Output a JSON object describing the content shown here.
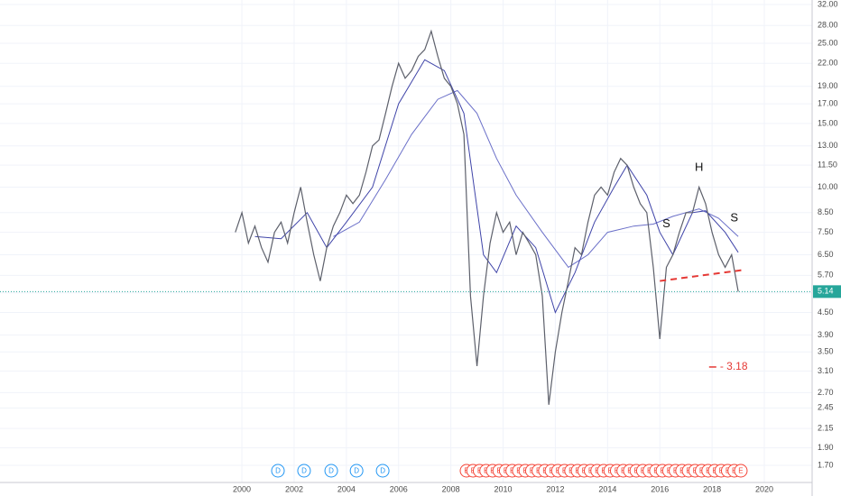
{
  "chart_data": {
    "type": "line",
    "log_scale": true,
    "grid": true,
    "xlim": [
      1990.74,
      2021.83
    ],
    "xticks": [
      2000,
      2002,
      2004,
      2006,
      2008,
      2010,
      2012,
      2014,
      2016,
      2018,
      2020
    ],
    "ylim": [
      1.524,
      32.93
    ],
    "yticks": [
      {
        "value": 1.7,
        "label": "1.70"
      },
      {
        "value": 1.9,
        "label": "1.90"
      },
      {
        "value": 2.15,
        "label": "2.15"
      },
      {
        "value": 2.45,
        "label": "2.45"
      },
      {
        "value": 2.7,
        "label": "2.70"
      },
      {
        "value": 3.1,
        "label": "3.10"
      },
      {
        "value": 3.5,
        "label": "3.50"
      },
      {
        "value": 3.9,
        "label": "3.90"
      },
      {
        "value": 4.5,
        "label": "4.50"
      },
      {
        "value": 5.1,
        "label": "5.10"
      },
      {
        "value": 5.7,
        "label": "5.70"
      },
      {
        "value": 6.5,
        "label": "6.50"
      },
      {
        "value": 7.5,
        "label": "7.50"
      },
      {
        "value": 8.5,
        "label": "8.50"
      },
      {
        "value": 10,
        "label": "10.00"
      },
      {
        "value": 11.5,
        "label": "11.50"
      },
      {
        "value": 13,
        "label": "13.00"
      },
      {
        "value": 15,
        "label": "15.00"
      },
      {
        "value": 17,
        "label": "17.00"
      },
      {
        "value": 19,
        "label": "19.00"
      },
      {
        "value": 22,
        "label": "22.00"
      },
      {
        "value": 25,
        "label": "25.00"
      },
      {
        "value": 28,
        "label": "28.00"
      },
      {
        "value": 32,
        "label": "32.00"
      }
    ],
    "price": {
      "color": "#5d606b",
      "x": [
        1999.75,
        2000,
        2000.25,
        2000.5,
        2000.75,
        2001,
        2001.25,
        2001.5,
        2001.75,
        2002,
        2002.25,
        2002.5,
        2002.75,
        2003,
        2003.25,
        2003.5,
        2003.75,
        2004,
        2004.25,
        2004.5,
        2004.75,
        2005,
        2005.25,
        2005.5,
        2005.75,
        2006,
        2006.25,
        2006.5,
        2006.75,
        2007,
        2007.25,
        2007.5,
        2007.75,
        2008,
        2008.25,
        2008.5,
        2008.75,
        2009,
        2009.25,
        2009.5,
        2009.75,
        2010,
        2010.25,
        2010.5,
        2010.75,
        2011,
        2011.25,
        2011.5,
        2011.75,
        2012,
        2012.25,
        2012.5,
        2012.75,
        2013,
        2013.25,
        2013.5,
        2013.75,
        2014,
        2014.25,
        2014.5,
        2014.75,
        2015,
        2015.25,
        2015.5,
        2015.75,
        2016,
        2016.25,
        2016.5,
        2016.75,
        2017,
        2017.25,
        2017.5,
        2017.75,
        2018,
        2018.25,
        2018.5,
        2018.75,
        2019
      ],
      "values": [
        7.5,
        8.5,
        7.0,
        7.8,
        6.8,
        6.2,
        7.5,
        8.0,
        7.0,
        8.5,
        10.0,
        8.0,
        6.5,
        5.5,
        6.8,
        7.8,
        8.5,
        9.5,
        9.0,
        9.5,
        11.0,
        13.0,
        13.5,
        16.0,
        19.0,
        22.0,
        20.0,
        21.0,
        23.0,
        24.0,
        27.0,
        23.0,
        20.0,
        19.0,
        17.0,
        14.0,
        5.0,
        3.2,
        5.0,
        7.0,
        8.5,
        7.5,
        8.0,
        6.5,
        7.5,
        7.0,
        6.5,
        5.0,
        2.5,
        3.5,
        4.5,
        5.5,
        6.8,
        6.5,
        8.0,
        9.5,
        10.0,
        9.5,
        11.0,
        12.0,
        11.5,
        10.0,
        9.0,
        8.5,
        6.0,
        3.8,
        6.0,
        6.5,
        7.5,
        8.5,
        8.5,
        10.0,
        9.0,
        7.5,
        6.5,
        6.0,
        6.5,
        5.14
      ]
    },
    "ma_fast": {
      "color": "#3f44a8",
      "x": [
        2000.5,
        2001.5,
        2002.5,
        2003.25,
        2004,
        2005,
        2006,
        2007,
        2007.75,
        2008.5,
        2009.25,
        2009.75,
        2010.5,
        2011.25,
        2012,
        2012.75,
        2013.5,
        2014.25,
        2014.75,
        2015.5,
        2016,
        2016.5,
        2017.25,
        2017.75,
        2018.5,
        2019
      ],
      "values": [
        7.3,
        7.2,
        8.5,
        6.8,
        8.0,
        10,
        17,
        22.5,
        21,
        16,
        6.5,
        5.8,
        7.8,
        6.8,
        4.5,
        5.8,
        8,
        10,
        11.5,
        9.5,
        7.5,
        6.5,
        8.5,
        8.6,
        7.5,
        6.6
      ]
    },
    "ma_slow": {
      "color": "#6a6fc8",
      "x": [
        2003.5,
        2004.5,
        2005.5,
        2006.5,
        2007.5,
        2008.25,
        2009,
        2009.75,
        2010.5,
        2011.5,
        2012.5,
        2013.25,
        2014,
        2015,
        2015.75,
        2016.5,
        2017.5,
        2018.25,
        2019
      ],
      "values": [
        7.3,
        8.0,
        10.5,
        14,
        17.5,
        18.5,
        16,
        12,
        9.5,
        7.5,
        6.0,
        6.5,
        7.5,
        7.8,
        7.9,
        8.3,
        8.7,
        8.2,
        7.3
      ]
    },
    "last_price": {
      "value": 5.14,
      "label": "5.14",
      "color": "#26a69a"
    },
    "trendline": {
      "x": [
        2016,
        2019.2
      ],
      "y": [
        5.5,
        5.9
      ],
      "color": "#e53935"
    },
    "annotations": [
      {
        "text": "H",
        "x": 2017.5,
        "y": 11.3
      },
      {
        "text": "S",
        "x": 2016.25,
        "y": 7.9
      },
      {
        "text": "S",
        "x": 2018.85,
        "y": 8.2
      }
    ],
    "target": {
      "value": 3.18,
      "label": "- 3.18",
      "x": 2018.3,
      "color": "#e53935"
    },
    "events": {
      "dividend_label": "D",
      "dividend_color": "#2196f3",
      "dividend_x": [
        2001.38,
        2002.38,
        2003.42,
        2004.39,
        2005.39
      ],
      "earnings_label": "E",
      "earnings_color": "#f44336",
      "earnings_x": [
        2008.6,
        2008.85,
        2009.1,
        2009.35,
        2009.6,
        2009.85,
        2010.1,
        2010.35,
        2010.6,
        2010.85,
        2011.1,
        2011.35,
        2011.6,
        2011.85,
        2012.1,
        2012.35,
        2012.6,
        2012.85,
        2013.1,
        2013.35,
        2013.6,
        2013.85,
        2014.1,
        2014.35,
        2014.6,
        2014.85,
        2015.1,
        2015.35,
        2015.6,
        2015.85,
        2016.1,
        2016.35,
        2016.6,
        2016.85,
        2017.1,
        2017.35,
        2017.6,
        2017.85,
        2018.1,
        2018.35,
        2018.6,
        2018.85,
        2019.1
      ]
    }
  }
}
